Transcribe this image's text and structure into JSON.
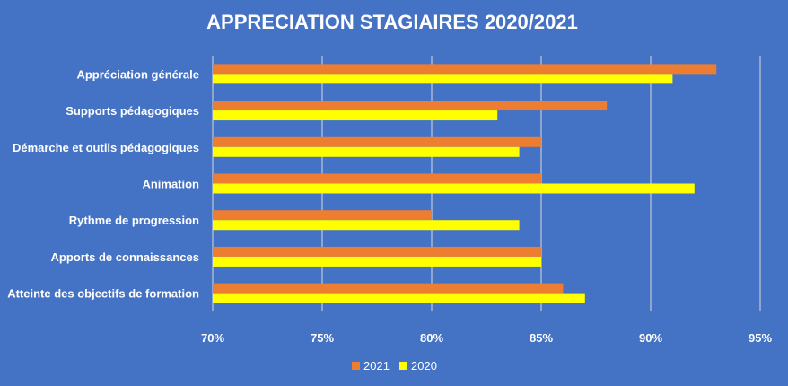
{
  "chart_data": {
    "type": "bar",
    "orientation": "horizontal",
    "title": "APPRECIATION STAGIAIRES 2020/2021",
    "categories": [
      "Appréciation générale",
      "Supports pédagogiques",
      "Démarche et outils pédagogiques",
      "Animation",
      "Rythme de progression",
      "Apports de connaissances",
      "Atteinte des objectifs de formation"
    ],
    "series": [
      {
        "name": "2021",
        "color": "#ED7D31",
        "values": [
          93,
          88,
          85,
          85,
          80,
          85,
          86
        ]
      },
      {
        "name": "2020",
        "color": "#FFFF00",
        "values": [
          91,
          83,
          84,
          92,
          84,
          85,
          87
        ]
      }
    ],
    "xlim": [
      70,
      95
    ],
    "ticks": [
      70,
      75,
      80,
      85,
      90,
      95
    ],
    "tick_labels": [
      "70%",
      "75%",
      "80%",
      "85%",
      "90%",
      "95%"
    ],
    "grid": true,
    "legend_position": "bottom",
    "background": "#4472C4",
    "gridline_color": "#D9D9D9"
  }
}
